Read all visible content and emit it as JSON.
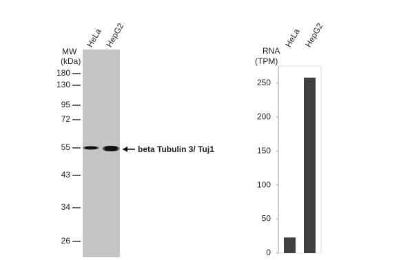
{
  "blot": {
    "lanes": [
      "HeLa",
      "HepG2"
    ],
    "mw_label": [
      "MW",
      "(kDa)"
    ],
    "markers": [
      "180",
      "130",
      "95",
      "72",
      "55",
      "43",
      "34",
      "26"
    ],
    "band_label": "beta Tubulin 3/ Tuj1"
  },
  "chart_data": {
    "type": "bar",
    "title": [
      "RNA",
      "(TPM)"
    ],
    "categories": [
      "HeLa",
      "HepG2"
    ],
    "values": [
      23,
      258
    ],
    "color": "#404040",
    "ylim": [
      0,
      275
    ],
    "yticks": [
      0,
      50,
      100,
      150,
      200,
      250
    ]
  }
}
